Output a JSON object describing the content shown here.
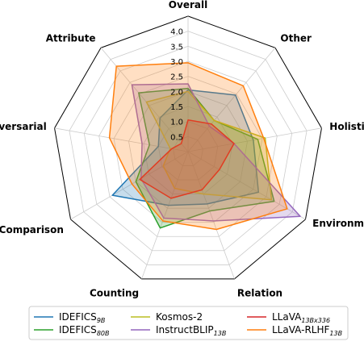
{
  "chart_data": {
    "type": "radar",
    "axes": [
      "Overall",
      "Other",
      "Holistic",
      "Environment",
      "Relation",
      "Counting",
      "Comparison",
      "Adversarial",
      "Attribute"
    ],
    "ticks": [
      "0.5",
      "1.0",
      "1.5",
      "2.0",
      "2.5",
      "3.0",
      "3.5",
      "4.0"
    ],
    "rlim": [
      0,
      4.5
    ],
    "grid": true,
    "legend_position": "bottom",
    "series": [
      {
        "name": "IDEFICS",
        "name_sub": "9B",
        "color": "#1f77b4",
        "values": [
          2.05,
          2.45,
          2.2,
          2.7,
          1.85,
          1.9,
          2.9,
          1.0,
          1.45
        ]
      },
      {
        "name": "IDEFICS",
        "name_sub": "80B",
        "color": "#2ca02c",
        "values": [
          2.1,
          1.35,
          2.35,
          3.3,
          2.1,
          2.7,
          2.0,
          1.3,
          2.55
        ]
      },
      {
        "name": "Kosmos-2",
        "name_sub": "",
        "color": "#bcbd22",
        "values": [
          2.0,
          1.35,
          2.6,
          3.2,
          1.5,
          1.3,
          0.95,
          0.6,
          2.15
        ]
      },
      {
        "name": "InstructBLIP",
        "name_sub": "13B",
        "color": "#9467bd",
        "values": [
          2.25,
          1.1,
          1.55,
          4.3,
          2.45,
          2.35,
          1.8,
          1.55,
          2.9
        ]
      },
      {
        "name": "LLaVA",
        "name_sub": "13Bx336",
        "color": "#d62728",
        "values": [
          1.05,
          1.2,
          1.55,
          1.2,
          1.35,
          1.65,
          1.85,
          0.55,
          0.35
        ]
      },
      {
        "name": "LLaVA-RLHF",
        "name_sub": "13B",
        "color": "#ff7f0e",
        "values": [
          2.95,
          2.85,
          2.55,
          3.8,
          2.75,
          2.45,
          2.15,
          2.65,
          3.7
        ]
      }
    ]
  }
}
